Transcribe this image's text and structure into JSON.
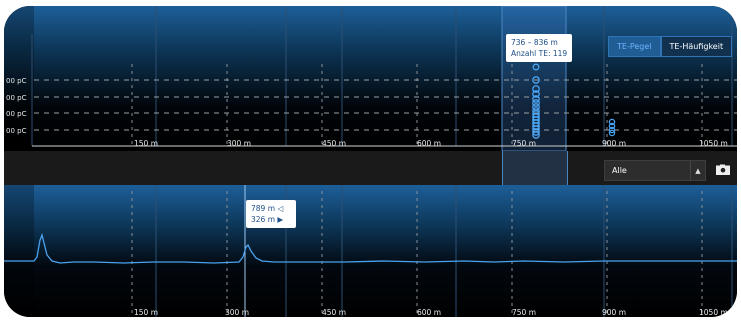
{
  "toggle": {
    "pegel_label": "TE-Pegel",
    "haeufigkeit_label": "TE-Häufigkeit"
  },
  "top_tooltip": {
    "range": "736 – 836 m",
    "count": "Anzahl TE: 119"
  },
  "cursor_tooltip": {
    "left_value": "789 m",
    "right_value": "326 m"
  },
  "y_axis_labels": [
    "00 pC",
    "00 pC",
    "00 pC",
    "00 pC"
  ],
  "x_axis_labels": [
    "150 m",
    "300 m",
    "450 m",
    "600 m",
    "750 m",
    "900 m",
    "1050 m"
  ],
  "filter": {
    "selected": "Alle"
  },
  "colors": {
    "accent": "#6fb4ff",
    "trace": "#4aa3f0",
    "selection": "#2f74b5"
  },
  "icons": {
    "filter_arrow": "triangle-up-icon",
    "export": "camera-icon"
  }
}
